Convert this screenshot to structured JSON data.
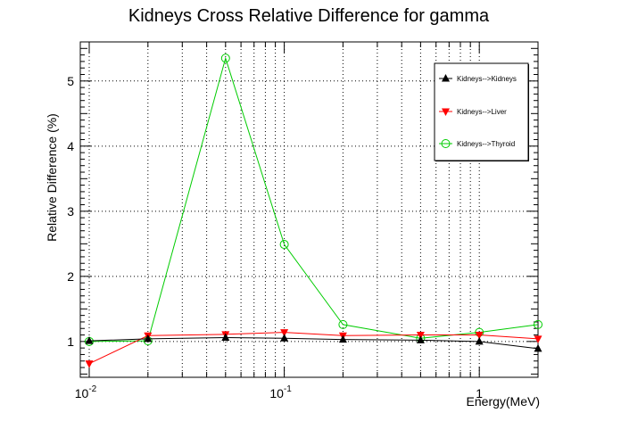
{
  "chart_data": {
    "type": "line",
    "title": "Kidneys Cross Relative Difference for gamma",
    "xlabel": "Energy(MeV)",
    "ylabel": "Relative Difference (%)",
    "xscale": "log",
    "xlim": [
      0.009,
      2.0
    ],
    "ylim": [
      0.45,
      5.6
    ],
    "grid": true,
    "legend_position": "top-right",
    "x": [
      0.01,
      0.02,
      0.05,
      0.1,
      0.2,
      0.5,
      1.0,
      2.0
    ],
    "xticks": [
      {
        "value": 0.01,
        "base": "10",
        "exp": "-2"
      },
      {
        "value": 0.1,
        "base": "10",
        "exp": "-1"
      },
      {
        "value": 1,
        "base": "1",
        "exp": ""
      }
    ],
    "yticks": [
      {
        "value": 1,
        "label": "1"
      },
      {
        "value": 2,
        "label": "2"
      },
      {
        "value": 3,
        "label": "3"
      },
      {
        "value": 4,
        "label": "4"
      },
      {
        "value": 5,
        "label": "5"
      }
    ],
    "series": [
      {
        "name": "Kidneys-->Kidneys",
        "color": "#000000",
        "marker": "triangle-up",
        "values": [
          1.01,
          1.04,
          1.06,
          1.05,
          1.03,
          1.02,
          1.0,
          0.89
        ]
      },
      {
        "name": "Kidneys-->Liver",
        "color": "#ff0000",
        "marker": "triangle-down",
        "values": [
          0.66,
          1.09,
          1.11,
          1.14,
          1.09,
          1.1,
          1.1,
          1.04
        ]
      },
      {
        "name": "Kidneys-->Thyroid",
        "color": "#00cc00",
        "marker": "circle-open",
        "values": [
          1.0,
          1.01,
          5.35,
          2.49,
          1.26,
          1.05,
          1.14,
          1.26
        ]
      }
    ]
  }
}
